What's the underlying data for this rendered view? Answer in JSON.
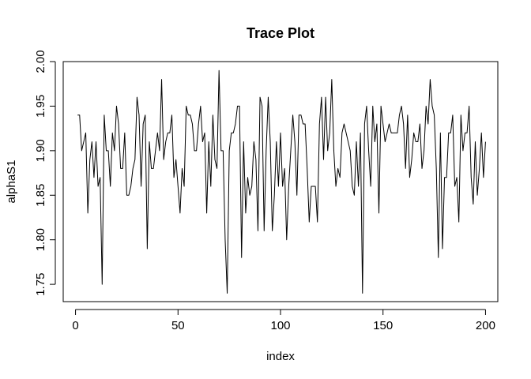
{
  "chart_data": {
    "type": "line",
    "title": "Trace Plot",
    "xlabel": "index",
    "ylabel": "alphaS1",
    "xlim": [
      -6,
      206
    ],
    "ylim": [
      1.7306,
      2.0
    ],
    "xticks": [
      0,
      50,
      100,
      150,
      200
    ],
    "yticks": [
      1.75,
      1.8,
      1.85,
      1.9,
      1.95,
      2.0
    ],
    "xtick_labels": [
      "0",
      "50",
      "100",
      "150",
      "200"
    ],
    "ytick_labels": [
      "1.75",
      "1.80",
      "1.85",
      "1.90",
      "1.95",
      "2.00"
    ],
    "grid": false,
    "line_color": "#000000",
    "series": [
      {
        "x": [
          1,
          2,
          3,
          4,
          5,
          6,
          7,
          8,
          9,
          10,
          11,
          12,
          13,
          14,
          15,
          16,
          17,
          18,
          19,
          20,
          21,
          22,
          23,
          24,
          25,
          26,
          27,
          28,
          29,
          30,
          31,
          32,
          33,
          34,
          35,
          36,
          37,
          38,
          39,
          40,
          41,
          42,
          43,
          44,
          45,
          46,
          47,
          48,
          49,
          50,
          51,
          52,
          53,
          54,
          55,
          56,
          57,
          58,
          59,
          60,
          61,
          62,
          63,
          64,
          65,
          66,
          67,
          68,
          69,
          70,
          71,
          72,
          73,
          74,
          75,
          76,
          77,
          78,
          79,
          80,
          81,
          82,
          83,
          84,
          85,
          86,
          87,
          88,
          89,
          90,
          91,
          92,
          93,
          94,
          95,
          96,
          97,
          98,
          99,
          100,
          101,
          102,
          103,
          104,
          105,
          106,
          107,
          108,
          109,
          110,
          111,
          112,
          113,
          114,
          115,
          116,
          117,
          118,
          119,
          120,
          121,
          122,
          123,
          124,
          125,
          126,
          127,
          128,
          129,
          130,
          131,
          132,
          133,
          134,
          135,
          136,
          137,
          138,
          139,
          140,
          141,
          142,
          143,
          144,
          145,
          146,
          147,
          148,
          149,
          150,
          151,
          152,
          153,
          154,
          155,
          156,
          157,
          158,
          159,
          160,
          161,
          162,
          163,
          164,
          165,
          166,
          167,
          168,
          169,
          170,
          171,
          172,
          173,
          174,
          175,
          176,
          177,
          178,
          179,
          180,
          181,
          182,
          183,
          184,
          185,
          186,
          187,
          188,
          189,
          190,
          191,
          192,
          193,
          194,
          195,
          196,
          197,
          198,
          199,
          200
        ],
        "values": [
          1.94,
          1.94,
          1.9,
          1.91,
          1.92,
          1.83,
          1.89,
          1.91,
          1.87,
          1.91,
          1.86,
          1.87,
          1.75,
          1.94,
          1.9,
          1.9,
          1.86,
          1.92,
          1.9,
          1.95,
          1.93,
          1.88,
          1.88,
          1.92,
          1.85,
          1.85,
          1.86,
          1.88,
          1.89,
          1.96,
          1.94,
          1.86,
          1.93,
          1.94,
          1.79,
          1.91,
          1.88,
          1.88,
          1.9,
          1.92,
          1.9,
          1.98,
          1.89,
          1.91,
          1.92,
          1.92,
          1.94,
          1.87,
          1.89,
          1.86,
          1.83,
          1.88,
          1.86,
          1.95,
          1.94,
          1.94,
          1.93,
          1.9,
          1.9,
          1.93,
          1.95,
          1.91,
          1.92,
          1.83,
          1.91,
          1.86,
          1.94,
          1.89,
          1.88,
          1.99,
          1.9,
          1.9,
          1.8,
          1.74,
          1.9,
          1.92,
          1.92,
          1.93,
          1.95,
          1.95,
          1.78,
          1.91,
          1.83,
          1.87,
          1.85,
          1.86,
          1.91,
          1.89,
          1.81,
          1.96,
          1.95,
          1.81,
          1.9,
          1.96,
          1.91,
          1.81,
          1.85,
          1.91,
          1.86,
          1.92,
          1.86,
          1.88,
          1.8,
          1.86,
          1.9,
          1.94,
          1.91,
          1.85,
          1.94,
          1.94,
          1.93,
          1.93,
          1.88,
          1.82,
          1.86,
          1.86,
          1.86,
          1.82,
          1.93,
          1.96,
          1.89,
          1.96,
          1.9,
          1.92,
          1.98,
          1.9,
          1.86,
          1.88,
          1.87,
          1.92,
          1.93,
          1.92,
          1.91,
          1.9,
          1.86,
          1.85,
          1.91,
          1.86,
          1.92,
          1.74,
          1.93,
          1.95,
          1.9,
          1.86,
          1.95,
          1.91,
          1.93,
          1.83,
          1.95,
          1.93,
          1.91,
          1.92,
          1.93,
          1.92,
          1.92,
          1.92,
          1.92,
          1.94,
          1.95,
          1.93,
          1.88,
          1.94,
          1.87,
          1.89,
          1.92,
          1.91,
          1.91,
          1.93,
          1.88,
          1.9,
          1.95,
          1.93,
          1.98,
          1.95,
          1.94,
          1.88,
          1.78,
          1.92,
          1.79,
          1.87,
          1.87,
          1.92,
          1.92,
          1.94,
          1.86,
          1.87,
          1.82,
          1.94,
          1.9,
          1.92,
          1.92,
          1.95,
          1.87,
          1.84,
          1.91,
          1.85,
          1.88,
          1.92,
          1.87,
          1.91
        ]
      }
    ]
  }
}
